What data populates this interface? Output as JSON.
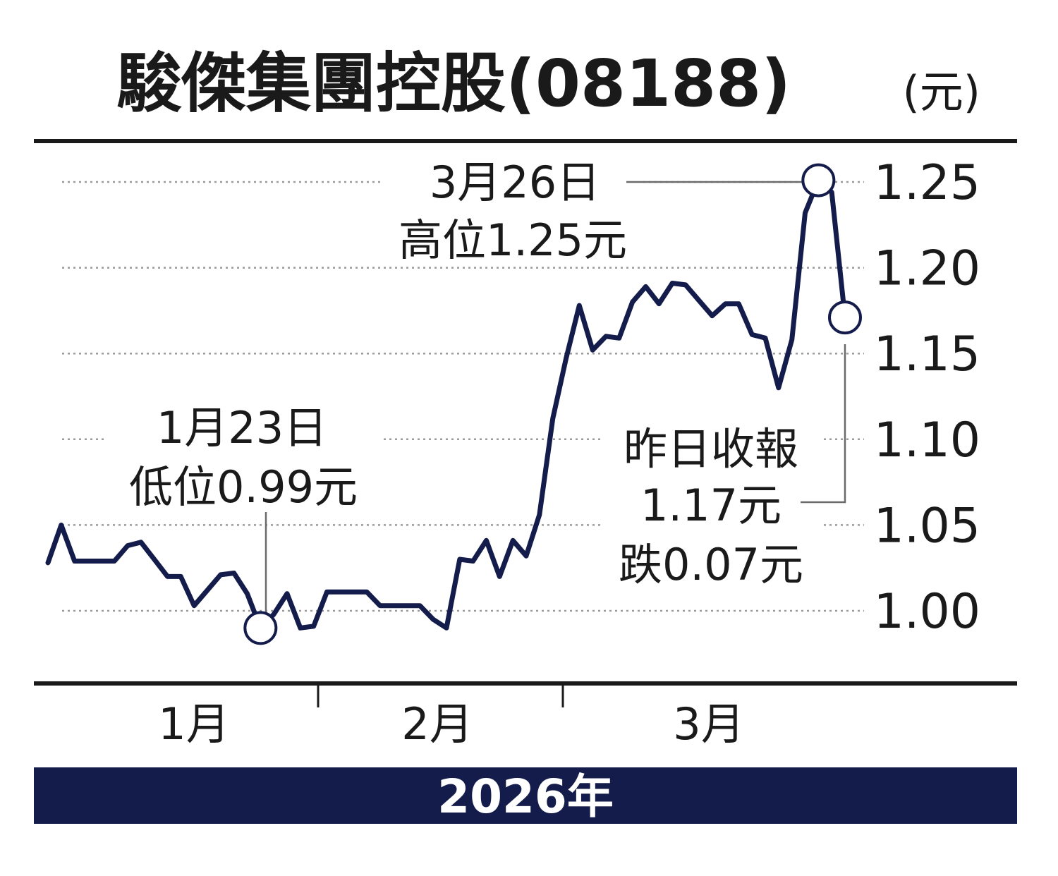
{
  "chart_data": {
    "type": "line",
    "title": "駿傑集團控股(08188)",
    "unit": "(元)",
    "year_label": "2026年",
    "yticks": [
      "1.25",
      "1.20",
      "1.15",
      "1.10",
      "1.05",
      "1.00"
    ],
    "ylim": [
      0.975,
      1.265
    ],
    "grid": true,
    "months": [
      "1月",
      "2月",
      "3月"
    ],
    "series": [
      {
        "values": [
          1.028,
          1.05,
          1.029,
          1.029,
          1.029,
          1.029,
          1.038,
          1.04,
          1.03,
          1.02,
          1.02,
          1.003,
          1.012,
          1.021,
          1.022,
          1.01,
          0.99,
          0.998,
          1.01,
          0.99,
          0.991,
          1.011,
          1.011,
          1.011,
          1.011,
          1.003,
          1.003,
          1.003,
          1.003,
          0.995,
          0.99,
          1.03,
          1.029,
          1.041,
          1.02,
          1.041,
          1.032,
          1.056,
          1.112,
          1.147,
          1.178,
          1.152,
          1.16,
          1.159,
          1.18,
          1.189,
          1.179,
          1.191,
          1.19,
          1.181,
          1.172,
          1.179,
          1.179,
          1.161,
          1.159,
          1.13,
          1.158,
          1.232,
          1.251,
          1.244,
          1.171
        ]
      }
    ],
    "annotations": {
      "high": {
        "date": "3月26日",
        "text": "高位1.25元",
        "value": 1.25
      },
      "low": {
        "date": "1月23日",
        "text": "低位0.99元",
        "value": 0.99
      },
      "close": {
        "line1": "昨日收報",
        "line2": "1.17元",
        "line3": "跌0.07元",
        "value": 1.17
      }
    },
    "colors": {
      "line": "#131c4a",
      "band": "#131c4a",
      "grid": "#9a9a9a",
      "text": "#1a1a1a"
    }
  }
}
